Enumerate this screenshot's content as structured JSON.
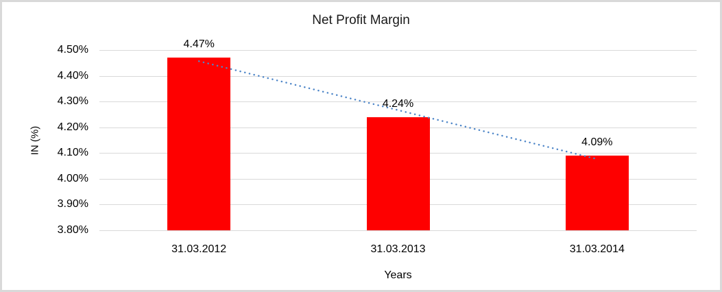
{
  "chart_data": {
    "type": "bar",
    "title": "Net Profit Margin",
    "xlabel": "Years",
    "ylabel": "IN (%)",
    "categories": [
      "31.03.2012",
      "31.03.2013",
      "31.03.2014"
    ],
    "values": [
      4.47,
      4.24,
      4.09
    ],
    "data_labels": [
      "4.47%",
      "4.24%",
      "4.09%"
    ],
    "ylim": [
      3.8,
      4.5
    ],
    "ytick_step": 0.1,
    "ytick_labels_top_to_bottom": [
      "4.50%",
      "4.40%",
      "4.30%",
      "4.20%",
      "4.10%",
      "4.00%",
      "3.90%",
      "3.80%"
    ],
    "grid": true,
    "legend": "none",
    "colors": {
      "bar": "#fe0000",
      "trendline": "#4e86c8",
      "gridline": "#d9d9d9",
      "text": "#000000",
      "frame_border": "#d9d9d9",
      "background": "#ffffff"
    },
    "trendline": {
      "type": "linear",
      "style": "dotted"
    }
  }
}
